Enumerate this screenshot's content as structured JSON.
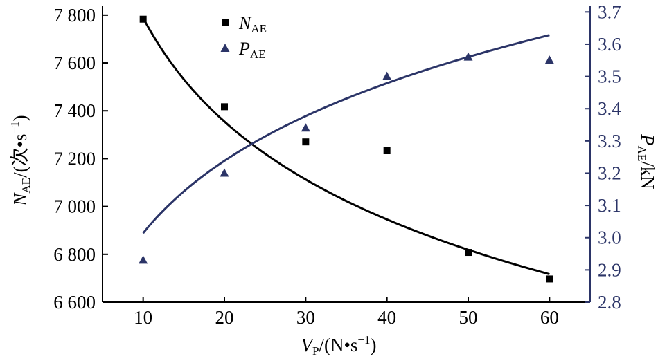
{
  "chart_data": {
    "type": "scatter",
    "xlabel": {
      "main": "V",
      "sub": "P",
      "unit": "/(N•s",
      "sup": "−1",
      "close": ")"
    },
    "y1label": {
      "main": "N",
      "sub": "AE",
      "unit": "/(次•s",
      "sup": "−1",
      "close": ")"
    },
    "y2label": {
      "main": "P",
      "sub": "AE",
      "unit": "/kN"
    },
    "x_ticks": [
      10,
      20,
      30,
      40,
      50,
      60
    ],
    "x_tick_labels": [
      "10",
      "20",
      "30",
      "40",
      "50",
      "60"
    ],
    "xlim": [
      5,
      65
    ],
    "y1_ticks": [
      6600,
      6800,
      7000,
      7200,
      7400,
      7600,
      7800
    ],
    "y1_tick_labels": [
      "6 600",
      "6 800",
      "7 000",
      "7 200",
      "7 400",
      "7 600",
      "7 800"
    ],
    "y1lim": [
      6600,
      7840
    ],
    "y2_ticks": [
      2.8,
      2.9,
      3.0,
      3.1,
      3.2,
      3.3,
      3.4,
      3.5,
      3.6,
      3.7
    ],
    "y2_tick_labels": [
      "2.8",
      "2.9",
      "3.0",
      "3.1",
      "3.2",
      "3.3",
      "3.4",
      "3.5",
      "3.6",
      "3.7"
    ],
    "y2lim": [
      2.8,
      3.72
    ],
    "legend": {
      "position": "top-left",
      "entries": [
        {
          "main": "N",
          "sub": "AE",
          "marker": "square",
          "color": "#000000"
        },
        {
          "main": "P",
          "sub": "AE",
          "marker": "triangle",
          "color": "#2b3467"
        }
      ]
    },
    "series": [
      {
        "name": "N_AE",
        "axis": "left",
        "marker": "square",
        "color": "#000000",
        "x": [
          10,
          20,
          30,
          40,
          50,
          60
        ],
        "y": [
          7783,
          7417,
          7270,
          7233,
          6808,
          6697
        ],
        "fit": {
          "type": "power",
          "a": 9420,
          "b": -0.0826,
          "x_range": [
            10,
            60
          ]
        }
      },
      {
        "name": "P_AE",
        "axis": "right",
        "marker": "triangle",
        "color": "#2b3467",
        "x": [
          10,
          20,
          30,
          40,
          50,
          60
        ],
        "y": [
          2.93,
          3.2,
          3.34,
          3.5,
          3.56,
          3.55
        ],
        "fit": {
          "type": "power",
          "a": 2.375,
          "b": 0.1035,
          "x_range": [
            10,
            60
          ]
        }
      }
    ],
    "grid": false,
    "colors": {
      "axis": "#000000",
      "right_axis": "#2b3467"
    }
  }
}
